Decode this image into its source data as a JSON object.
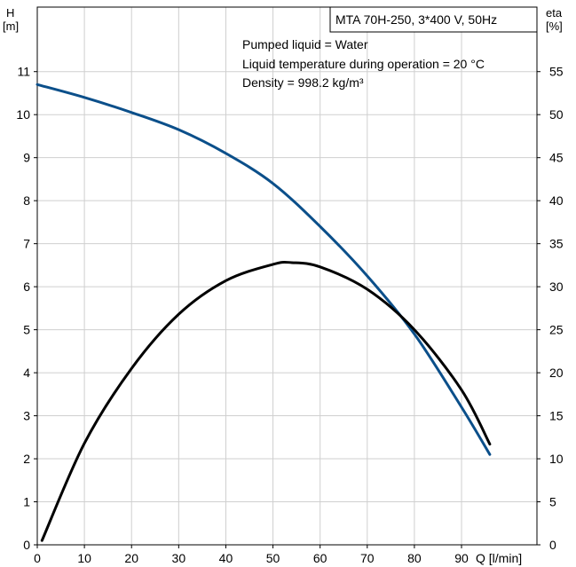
{
  "chart_data": {
    "type": "line",
    "title": "MTA 70H-250, 3*400 V, 50Hz",
    "info_lines": [
      "Pumped liquid = Water",
      "Liquid temperature during operation = 20 °C",
      "Density = 998.2 kg/m³"
    ],
    "xlabel": "Q [l/min]",
    "ylabel_left": [
      "H",
      "[m]"
    ],
    "ylabel_right": [
      "eta",
      "[%]"
    ],
    "xlim": [
      0,
      106
    ],
    "ylim_left": [
      0,
      12.5
    ],
    "ylim_right": [
      0,
      62.5
    ],
    "x_ticks": [
      0,
      10,
      20,
      30,
      40,
      50,
      60,
      70,
      80,
      90
    ],
    "y_ticks_left": [
      0,
      1,
      2,
      3,
      4,
      5,
      6,
      7,
      8,
      9,
      10,
      11
    ],
    "y_ticks_right": [
      0,
      5,
      10,
      15,
      20,
      25,
      30,
      35,
      40,
      45,
      50,
      55
    ],
    "grid": true,
    "series": [
      {
        "axis": "left",
        "color": "#0b4f8a",
        "x": [
          0,
          10,
          20,
          30,
          40,
          50,
          60,
          70,
          80,
          90,
          96
        ],
        "y": [
          10.7,
          10.4,
          10.05,
          9.65,
          9.1,
          8.4,
          7.4,
          6.25,
          4.9,
          3.2,
          2.1
        ]
      },
      {
        "axis": "right",
        "color": "#000000",
        "x": [
          1,
          10,
          20,
          30,
          40,
          50,
          54,
          60,
          70,
          80,
          90,
          96
        ],
        "y": [
          0.5,
          11.8,
          20.5,
          26.8,
          30.7,
          32.6,
          32.8,
          32.3,
          29.7,
          25.0,
          18.0,
          11.7
        ]
      }
    ]
  }
}
